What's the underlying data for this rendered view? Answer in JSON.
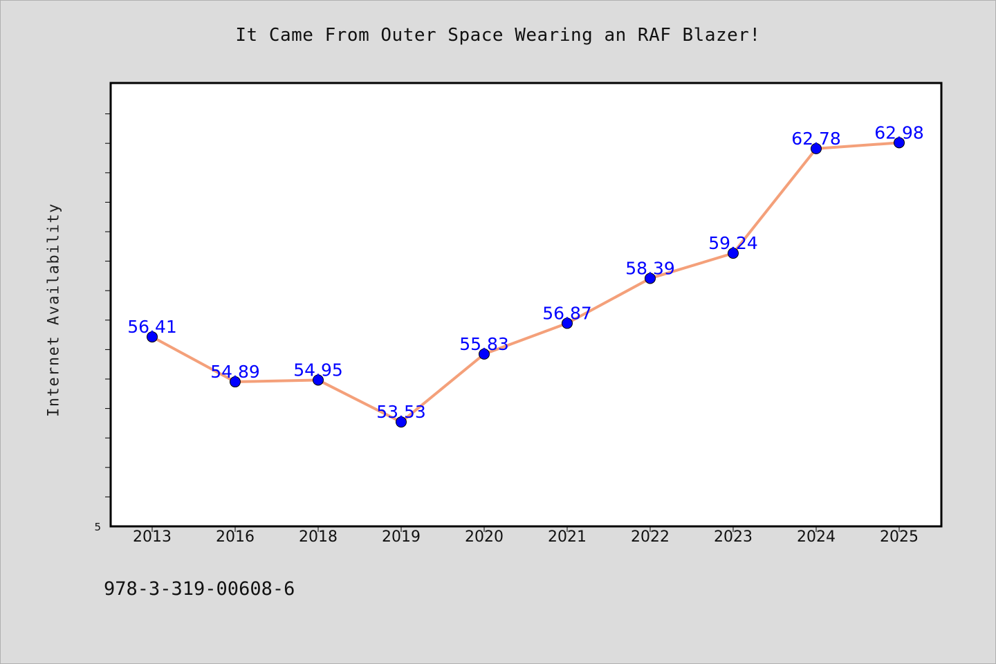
{
  "chart_data": {
    "type": "line",
    "title": "It Came From Outer Space Wearing an RAF Blazer!",
    "xlabel": "",
    "ylabel": "Internet Availability",
    "categories": [
      "2013",
      "2016",
      "2018",
      "2019",
      "2020",
      "2021",
      "2022",
      "2023",
      "2024",
      "2025"
    ],
    "series": [
      {
        "values": [
          56.41,
          54.89,
          54.95,
          53.53,
          55.83,
          56.87,
          58.39,
          59.24,
          62.78,
          62.98
        ],
        "labels": [
          "56.41",
          "54.89",
          "54.95",
          "53.53",
          "55.83",
          "56.87",
          "58.39",
          "59.24",
          "62.78",
          "62.98"
        ],
        "line_color": "#f4a07a",
        "marker_color": "#0000ff"
      }
    ],
    "ylim": [
      50,
      65
    ],
    "y_tick_labels": [
      "5"
    ],
    "y_minor_ticks": 14,
    "grid": false,
    "background": "#ffffff"
  },
  "footer": {
    "isbn": "978-3-319-00608-6"
  }
}
